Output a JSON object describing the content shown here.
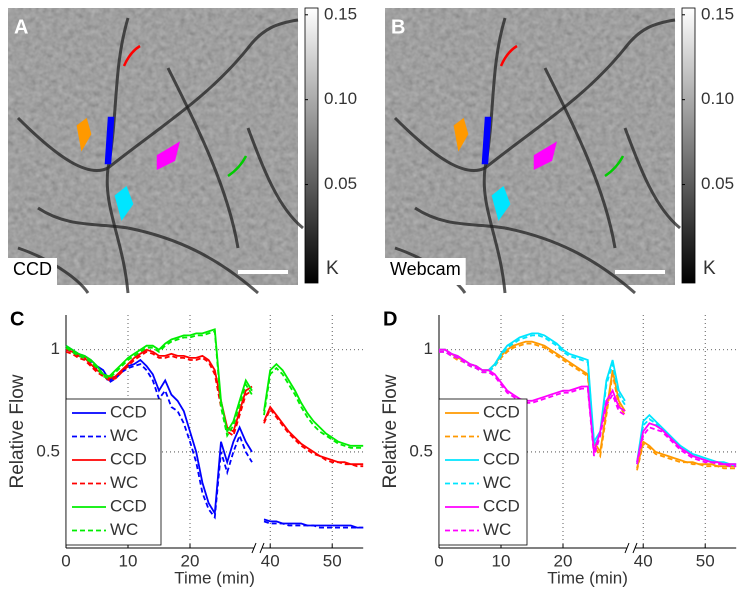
{
  "chart_data": [
    {
      "type": "image",
      "panel_label": "A",
      "caption": "CCD",
      "clim": [
        -0.008,
        0.154
      ],
      "cticks": [
        0.05,
        {
          "value": 0.1,
          "label": "0.10"
        },
        0.15
      ],
      "unit": "K"
    },
    {
      "type": "image",
      "panel_label": "B",
      "caption": "Webcam",
      "clim": [
        -0.008,
        0.154
      ],
      "cticks": [
        0.05,
        {
          "value": 0.1,
          "label": "0.10"
        },
        0.15
      ],
      "unit": "K"
    },
    {
      "type": "line",
      "panel_label": "C",
      "ylabel": "Relative Flow",
      "xlabel": "Time (min)",
      "xlim": [
        0,
        55
      ],
      "axis_break": [
        30,
        39
      ],
      "ylim": [
        0.03,
        1.17
      ],
      "xticks": [
        0,
        10,
        20,
        40,
        50
      ],
      "yticks": [
        0.5,
        1
      ],
      "grid": true,
      "legend": "lower left",
      "x": [
        0,
        1,
        2,
        3,
        4,
        5,
        6,
        7,
        8,
        9,
        10,
        11,
        12,
        13,
        14,
        15,
        16,
        17,
        18,
        19,
        20,
        21,
        22,
        23,
        24,
        25,
        26,
        27,
        28,
        29,
        30,
        39,
        40,
        41,
        42,
        43,
        44,
        45,
        46,
        47,
        48,
        49,
        50,
        51,
        52,
        53,
        54,
        55
      ],
      "series": [
        {
          "name": "CCD",
          "color": "#0000ff",
          "dashed": false,
          "values": [
            1.02,
            1.0,
            0.98,
            0.97,
            0.95,
            0.92,
            0.9,
            0.85,
            0.87,
            0.9,
            0.92,
            0.93,
            0.95,
            0.92,
            0.88,
            0.8,
            0.85,
            0.78,
            0.75,
            0.7,
            0.6,
            0.5,
            0.35,
            0.25,
            0.2,
            0.55,
            0.45,
            0.55,
            0.62,
            0.55,
            0.5,
            0.17,
            0.16,
            0.16,
            0.15,
            0.15,
            0.15,
            0.15,
            0.14,
            0.14,
            0.14,
            0.14,
            0.14,
            0.14,
            0.14,
            0.14,
            0.13,
            0.13
          ]
        },
        {
          "name": "WC",
          "color": "#0000ff",
          "dashed": true,
          "values": [
            1.0,
            0.99,
            0.97,
            0.96,
            0.94,
            0.91,
            0.88,
            0.84,
            0.86,
            0.89,
            0.91,
            0.92,
            0.93,
            0.9,
            0.85,
            0.76,
            0.8,
            0.72,
            0.7,
            0.64,
            0.55,
            0.45,
            0.3,
            0.22,
            0.18,
            0.5,
            0.4,
            0.5,
            0.58,
            0.5,
            0.45,
            0.16,
            0.15,
            0.15,
            0.15,
            0.14,
            0.14,
            0.14,
            0.14,
            0.14,
            0.13,
            0.13,
            0.13,
            0.13,
            0.13,
            0.13,
            0.13,
            0.13
          ]
        },
        {
          "name": "CCD",
          "color": "#ff0000",
          "dashed": false,
          "values": [
            1.0,
            0.99,
            0.97,
            0.96,
            0.93,
            0.9,
            0.88,
            0.86,
            0.87,
            0.9,
            0.93,
            0.96,
            0.98,
            1.0,
            0.99,
            0.97,
            0.97,
            0.98,
            0.97,
            0.97,
            0.96,
            0.96,
            0.97,
            0.95,
            0.9,
            0.75,
            0.62,
            0.6,
            0.7,
            0.8,
            0.82,
            0.65,
            0.72,
            0.68,
            0.64,
            0.6,
            0.57,
            0.54,
            0.52,
            0.5,
            0.48,
            0.47,
            0.46,
            0.45,
            0.45,
            0.44,
            0.44,
            0.44
          ]
        },
        {
          "name": "WC",
          "color": "#ff0000",
          "dashed": true,
          "values": [
            0.99,
            0.98,
            0.96,
            0.95,
            0.92,
            0.89,
            0.87,
            0.85,
            0.86,
            0.89,
            0.92,
            0.95,
            0.97,
            0.99,
            0.98,
            0.96,
            0.96,
            0.97,
            0.96,
            0.96,
            0.95,
            0.95,
            0.96,
            0.94,
            0.88,
            0.72,
            0.6,
            0.58,
            0.68,
            0.78,
            0.8,
            0.64,
            0.71,
            0.67,
            0.63,
            0.59,
            0.56,
            0.53,
            0.51,
            0.49,
            0.48,
            0.46,
            0.45,
            0.45,
            0.44,
            0.44,
            0.43,
            0.43
          ]
        },
        {
          "name": "CCD",
          "color": "#00ee00",
          "dashed": false,
          "values": [
            1.02,
            1.0,
            0.98,
            0.97,
            0.95,
            0.92,
            0.88,
            0.87,
            0.9,
            0.93,
            0.96,
            0.98,
            1.0,
            1.02,
            1.02,
            1.0,
            1.03,
            1.05,
            1.06,
            1.07,
            1.07,
            1.08,
            1.08,
            1.09,
            1.1,
            0.75,
            0.6,
            0.65,
            0.75,
            0.85,
            0.8,
            0.7,
            0.9,
            0.93,
            0.9,
            0.85,
            0.8,
            0.74,
            0.69,
            0.65,
            0.62,
            0.59,
            0.57,
            0.55,
            0.54,
            0.53,
            0.53,
            0.53
          ]
        },
        {
          "name": "WC",
          "color": "#00ee00",
          "dashed": true,
          "values": [
            1.01,
            0.99,
            0.97,
            0.96,
            0.94,
            0.91,
            0.87,
            0.86,
            0.89,
            0.92,
            0.95,
            0.97,
            0.99,
            1.01,
            1.01,
            0.99,
            1.02,
            1.04,
            1.05,
            1.06,
            1.06,
            1.07,
            1.07,
            1.08,
            1.09,
            0.72,
            0.58,
            0.63,
            0.73,
            0.83,
            0.78,
            0.68,
            0.88,
            0.91,
            0.88,
            0.83,
            0.78,
            0.72,
            0.67,
            0.63,
            0.6,
            0.58,
            0.56,
            0.54,
            0.53,
            0.52,
            0.52,
            0.52
          ]
        }
      ]
    },
    {
      "type": "line",
      "panel_label": "D",
      "ylabel": "Relative Flow",
      "xlabel": "Time (min)",
      "xlim": [
        0,
        55
      ],
      "axis_break": [
        30,
        39
      ],
      "ylim": [
        0.03,
        1.17
      ],
      "xticks": [
        0,
        10,
        20,
        40,
        50
      ],
      "yticks": [
        0.5,
        1
      ],
      "grid": true,
      "legend": "lower left",
      "x": [
        0,
        1,
        2,
        3,
        4,
        5,
        6,
        7,
        8,
        9,
        10,
        11,
        12,
        13,
        14,
        15,
        16,
        17,
        18,
        19,
        20,
        21,
        22,
        23,
        24,
        25,
        26,
        27,
        28,
        29,
        30,
        39,
        40,
        41,
        42,
        43,
        44,
        45,
        46,
        47,
        48,
        49,
        50,
        51,
        52,
        53,
        54,
        55
      ],
      "series": [
        {
          "name": "CCD",
          "color": "#ff9900",
          "dashed": false,
          "values": [
            1.0,
            1.0,
            0.98,
            0.96,
            0.95,
            0.93,
            0.92,
            0.9,
            0.9,
            0.93,
            0.97,
            1.0,
            1.02,
            1.03,
            1.04,
            1.04,
            1.03,
            1.02,
            1.0,
            0.98,
            0.96,
            0.94,
            0.92,
            0.9,
            0.88,
            0.55,
            0.5,
            0.7,
            0.9,
            0.75,
            0.7,
            0.42,
            0.55,
            0.53,
            0.5,
            0.49,
            0.48,
            0.47,
            0.46,
            0.45,
            0.45,
            0.44,
            0.44,
            0.44,
            0.43,
            0.43,
            0.43,
            0.43
          ]
        },
        {
          "name": "WC",
          "color": "#ff9900",
          "dashed": true,
          "values": [
            0.99,
            0.99,
            0.97,
            0.95,
            0.94,
            0.92,
            0.91,
            0.89,
            0.89,
            0.92,
            0.96,
            0.99,
            1.01,
            1.02,
            1.03,
            1.03,
            1.02,
            1.01,
            0.99,
            0.97,
            0.95,
            0.93,
            0.91,
            0.89,
            0.87,
            0.53,
            0.48,
            0.68,
            0.88,
            0.73,
            0.68,
            0.41,
            0.54,
            0.52,
            0.49,
            0.48,
            0.47,
            0.46,
            0.45,
            0.45,
            0.44,
            0.44,
            0.43,
            0.43,
            0.43,
            0.42,
            0.42,
            0.42
          ]
        },
        {
          "name": "CCD",
          "color": "#00e5ff",
          "dashed": false,
          "values": [
            1.0,
            1.0,
            0.98,
            0.97,
            0.95,
            0.93,
            0.92,
            0.9,
            0.9,
            0.93,
            0.98,
            1.02,
            1.04,
            1.06,
            1.07,
            1.08,
            1.08,
            1.07,
            1.05,
            1.03,
            1.0,
            0.98,
            0.97,
            0.96,
            0.95,
            0.55,
            0.6,
            0.85,
            0.95,
            0.8,
            0.75,
            0.45,
            0.65,
            0.68,
            0.65,
            0.62,
            0.59,
            0.56,
            0.53,
            0.51,
            0.49,
            0.48,
            0.47,
            0.46,
            0.45,
            0.45,
            0.44,
            0.44
          ]
        },
        {
          "name": "WC",
          "color": "#00e5ff",
          "dashed": true,
          "values": [
            0.99,
            0.99,
            0.97,
            0.96,
            0.94,
            0.92,
            0.91,
            0.89,
            0.89,
            0.92,
            0.97,
            1.01,
            1.03,
            1.05,
            1.06,
            1.07,
            1.07,
            1.06,
            1.04,
            1.02,
            0.99,
            0.97,
            0.96,
            0.95,
            0.94,
            0.53,
            0.58,
            0.83,
            0.93,
            0.78,
            0.73,
            0.44,
            0.63,
            0.66,
            0.64,
            0.61,
            0.58,
            0.55,
            0.52,
            0.5,
            0.48,
            0.47,
            0.46,
            0.45,
            0.45,
            0.44,
            0.44,
            0.43
          ]
        },
        {
          "name": "CCD",
          "color": "#ff00ff",
          "dashed": false,
          "values": [
            1.0,
            1.0,
            0.98,
            0.97,
            0.95,
            0.93,
            0.92,
            0.9,
            0.9,
            0.88,
            0.84,
            0.8,
            0.78,
            0.76,
            0.75,
            0.75,
            0.76,
            0.77,
            0.78,
            0.79,
            0.8,
            0.8,
            0.81,
            0.82,
            0.82,
            0.5,
            0.6,
            0.75,
            0.8,
            0.72,
            0.7,
            0.45,
            0.6,
            0.64,
            0.63,
            0.61,
            0.58,
            0.55,
            0.52,
            0.5,
            0.48,
            0.47,
            0.46,
            0.45,
            0.45,
            0.44,
            0.44,
            0.44
          ]
        },
        {
          "name": "WC",
          "color": "#ff00ff",
          "dashed": true,
          "values": [
            0.99,
            0.99,
            0.97,
            0.96,
            0.94,
            0.92,
            0.91,
            0.89,
            0.89,
            0.87,
            0.83,
            0.79,
            0.77,
            0.75,
            0.74,
            0.74,
            0.75,
            0.76,
            0.77,
            0.78,
            0.79,
            0.79,
            0.8,
            0.81,
            0.81,
            0.48,
            0.58,
            0.73,
            0.78,
            0.7,
            0.68,
            0.44,
            0.58,
            0.62,
            0.61,
            0.6,
            0.57,
            0.54,
            0.51,
            0.49,
            0.47,
            0.46,
            0.45,
            0.45,
            0.44,
            0.44,
            0.43,
            0.43
          ]
        }
      ]
    }
  ]
}
